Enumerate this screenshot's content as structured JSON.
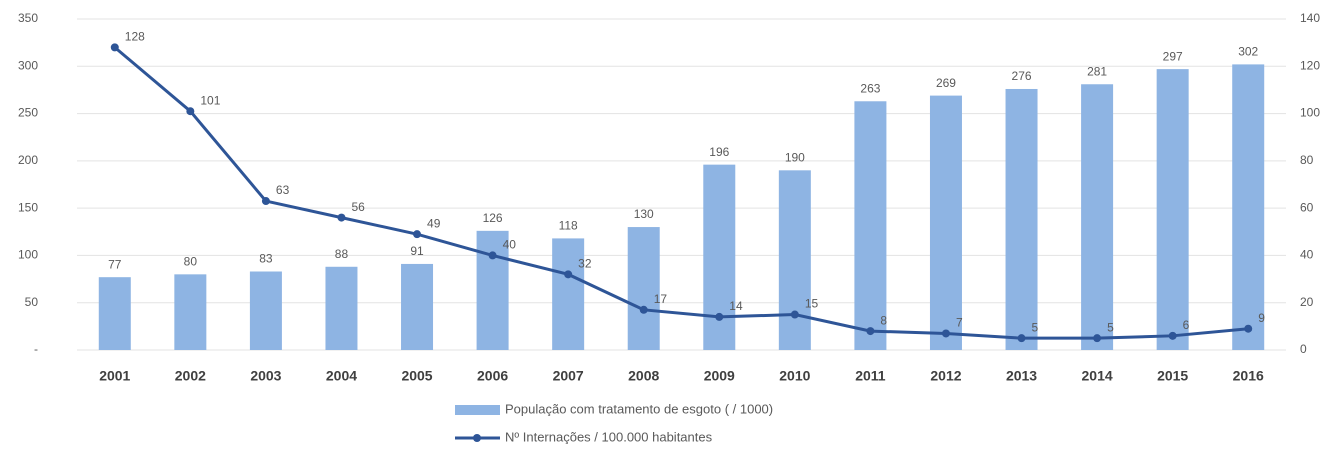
{
  "chart_data": {
    "type": "bar",
    "categories": [
      "2001",
      "2002",
      "2003",
      "2004",
      "2005",
      "2006",
      "2007",
      "2008",
      "2009",
      "2010",
      "2011",
      "2012",
      "2013",
      "2014",
      "2015",
      "2016"
    ],
    "series": [
      {
        "name": "População com tratamento de esgoto ( / 1000)",
        "type": "bar",
        "color": "#8eb4e3",
        "values": [
          77,
          80,
          83,
          88,
          91,
          126,
          118,
          130,
          196,
          190,
          263,
          269,
          276,
          281,
          297,
          302
        ]
      },
      {
        "name": "Nº Internações / 100.000 habitantes",
        "type": "line",
        "color": "#2e5597",
        "axis": "y2",
        "values": [
          128,
          101,
          63,
          56,
          49,
          40,
          32,
          17,
          14,
          15,
          8,
          7,
          5,
          5,
          6,
          9
        ]
      }
    ],
    "ylim": [
      0,
      350
    ],
    "yticks": [
      {
        "value": 0,
        "label": "-"
      },
      50,
      100,
      150,
      200,
      250,
      300,
      350
    ],
    "y2lim": [
      0,
      140
    ],
    "y2ticks": [
      0,
      20,
      40,
      60,
      80,
      100,
      120,
      140
    ],
    "grid": true
  }
}
